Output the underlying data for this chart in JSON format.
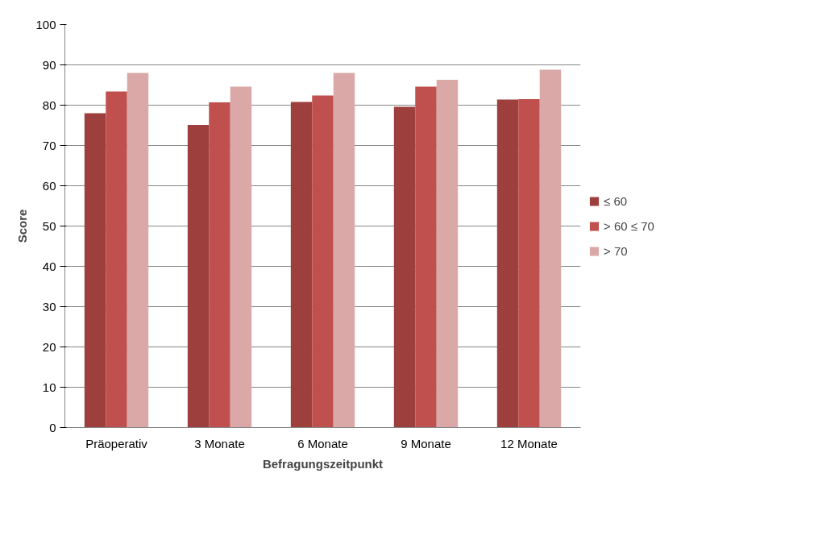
{
  "chart_data": {
    "type": "bar",
    "xlabel": "Befragungszeitpunkt",
    "ylabel": "Score",
    "categories": [
      "Präoperativ",
      "3 Monate",
      "6 Monate",
      "9 Monate",
      "12 Monate"
    ],
    "series": [
      {
        "name": "≤ 60",
        "color": "#9c3f3d",
        "values": [
          78.0,
          75.1,
          80.8,
          79.6,
          81.4
        ]
      },
      {
        "name": "> 60 ≤ 70",
        "color": "#c0504d",
        "values": [
          83.4,
          80.7,
          82.4,
          84.6,
          81.5
        ]
      },
      {
        "name": "> 70",
        "color": "#d9a8a7",
        "values": [
          88.0,
          84.6,
          88.0,
          86.3,
          88.8
        ]
      }
    ],
    "ylim": [
      0,
      100
    ],
    "yticks": [
      0,
      10,
      20,
      30,
      40,
      50,
      60,
      70,
      80,
      90,
      100
    ],
    "grid": "y",
    "legend": "right"
  }
}
